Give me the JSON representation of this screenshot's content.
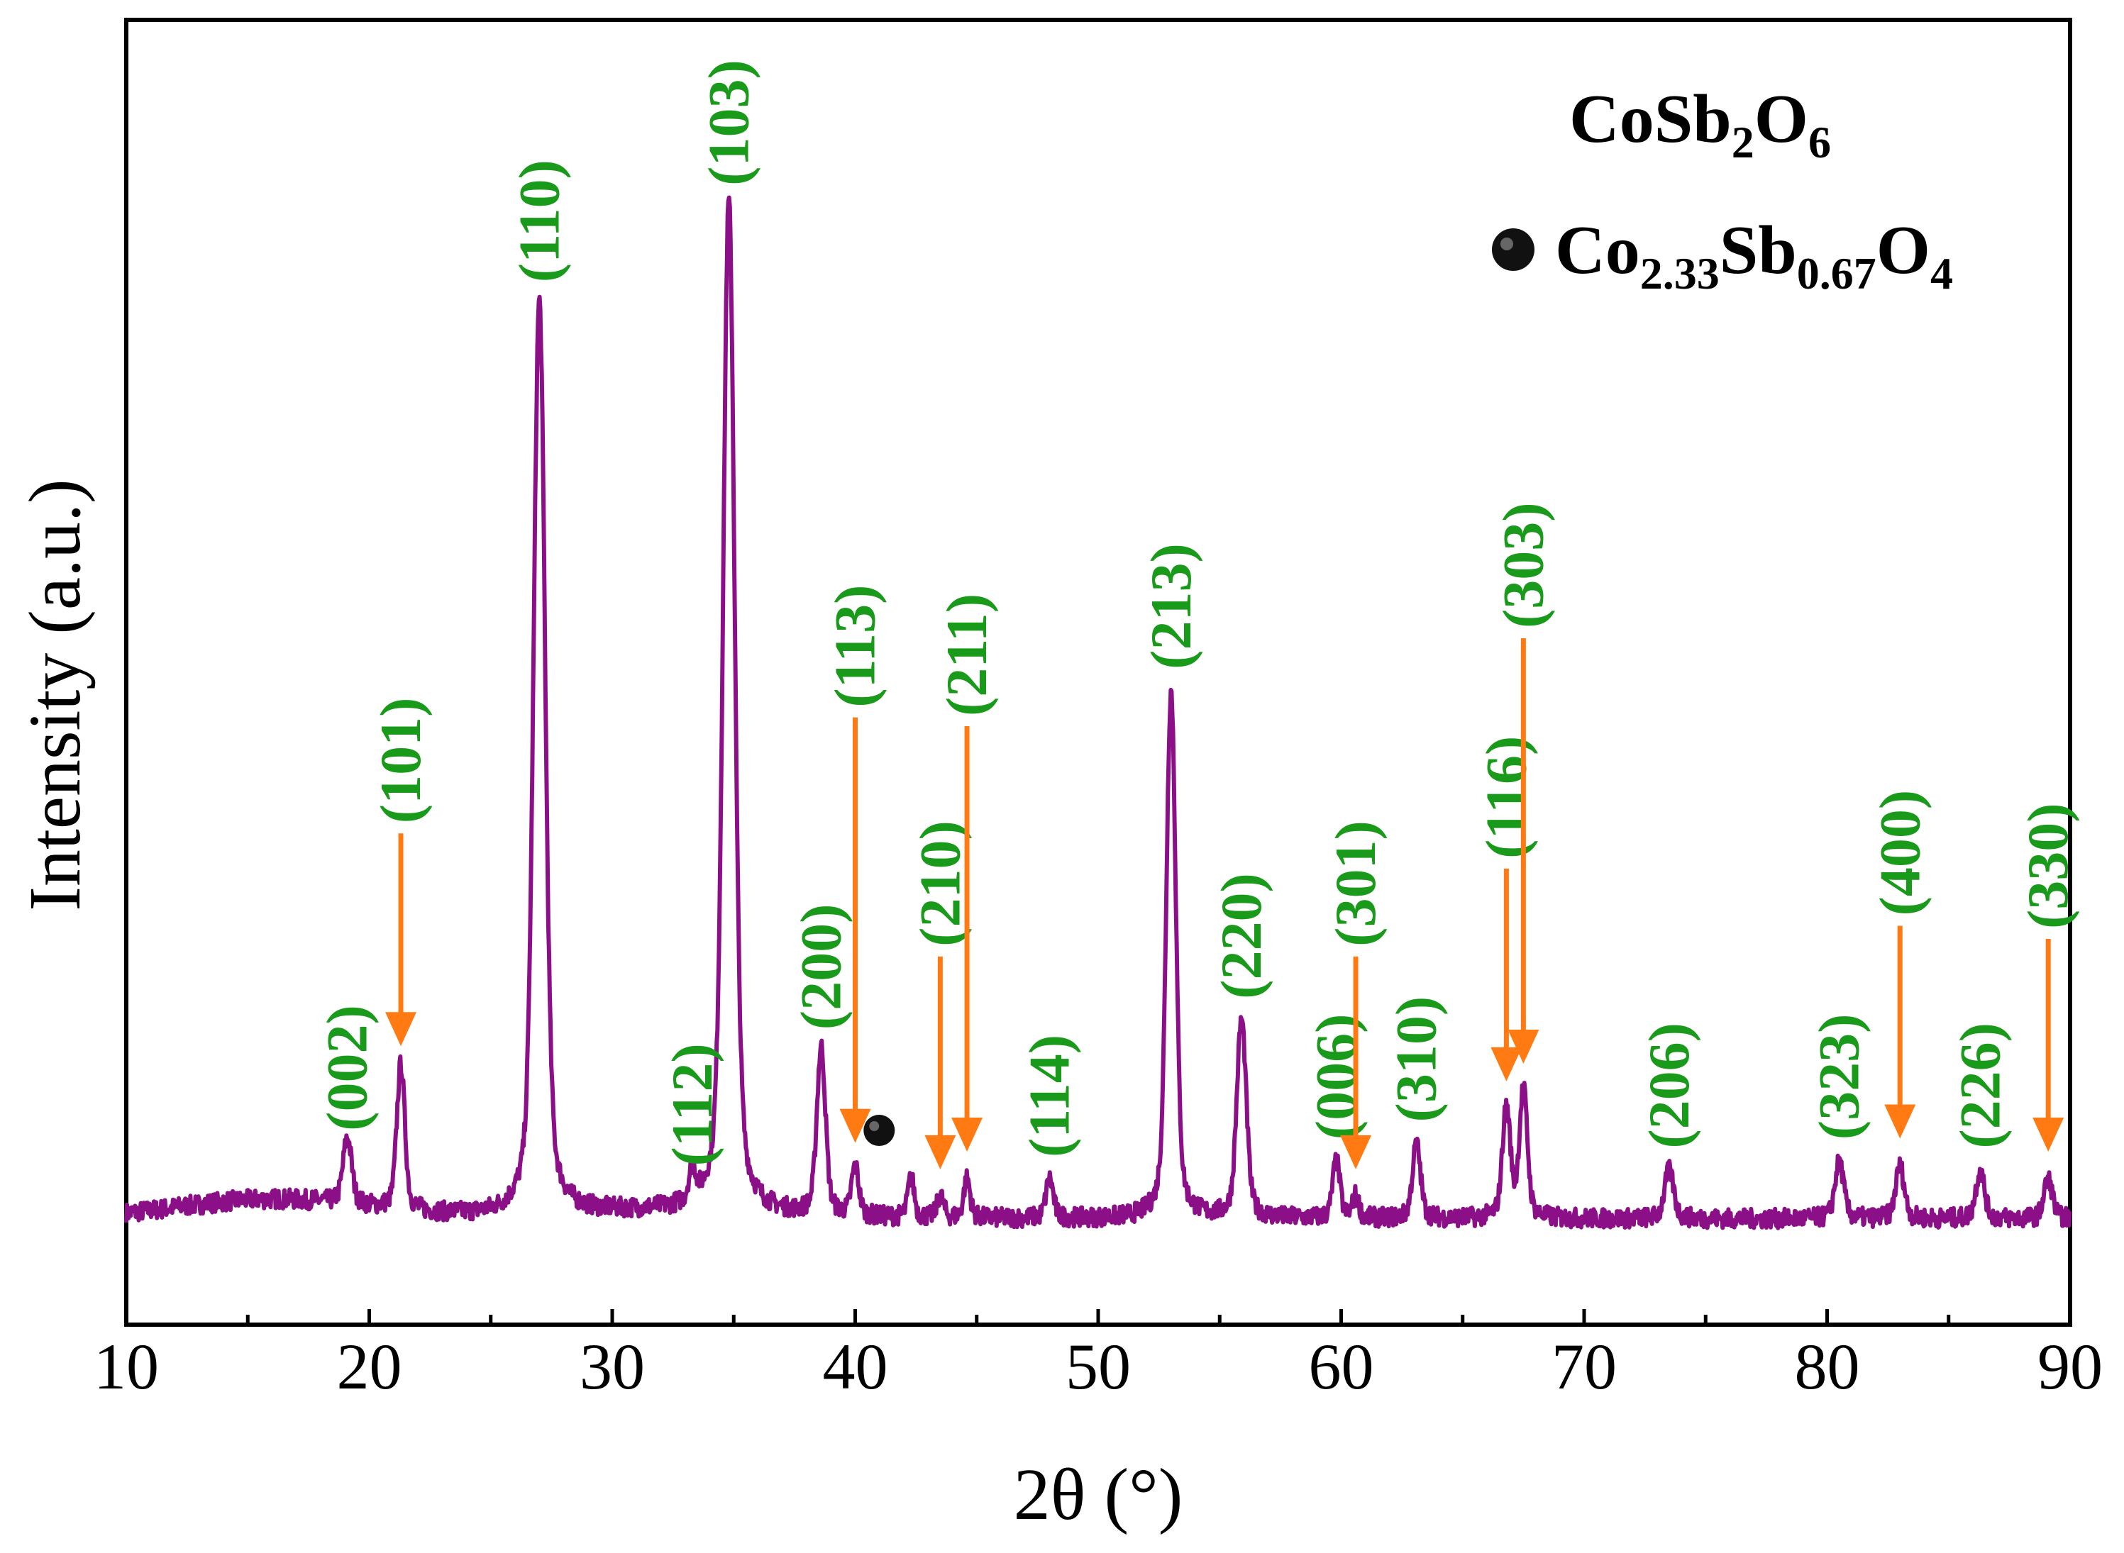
{
  "chart_data": {
    "type": "line",
    "title": "",
    "xlabel": "2θ (°)",
    "ylabel": "Intensity (a.u.)",
    "xlim": [
      10,
      90
    ],
    "ylim": [
      0,
      100
    ],
    "xticks": [
      10,
      20,
      30,
      40,
      50,
      60,
      70,
      80,
      90
    ],
    "xtick_labels": [
      "10",
      "20",
      "30",
      "40",
      "50",
      "60",
      "70",
      "80",
      "90"
    ],
    "grid": false,
    "line_color": "#8b0f86",
    "baseline": 2.5,
    "peaks": [
      {
        "x": 19.1,
        "h": 7.5,
        "w": 0.3,
        "hkl": "(002)",
        "arrow": false
      },
      {
        "x": 21.3,
        "h": 16.5,
        "w": 0.28,
        "hkl": "(101)",
        "arrow": true
      },
      {
        "x": 27.0,
        "h": 104.0,
        "w": 0.4,
        "hkl": "(110)",
        "arrow": false
      },
      {
        "x": 33.3,
        "h": 3.5,
        "w": 0.25,
        "hkl": "(112)",
        "arrow": false
      },
      {
        "x": 34.8,
        "h": 115.0,
        "w": 0.4,
        "hkl": "(103)",
        "arrow": false
      },
      {
        "x": 38.6,
        "h": 19.0,
        "w": 0.3,
        "hkl": "(200)",
        "arrow": false
      },
      {
        "x": 40.0,
        "h": 5.5,
        "w": 0.25,
        "hkl": "(113)",
        "arrow": true
      },
      {
        "x": 42.3,
        "h": 4.5,
        "w": 0.22,
        "hkl": "",
        "arrow": false,
        "marker": "impurity"
      },
      {
        "x": 43.5,
        "h": 2.5,
        "w": 0.22,
        "hkl": "(210)",
        "arrow": true
      },
      {
        "x": 44.6,
        "h": 4.5,
        "w": 0.22,
        "hkl": "(211)",
        "arrow": true
      },
      {
        "x": 48.0,
        "h": 4.5,
        "w": 0.25,
        "hkl": "(114)",
        "arrow": false
      },
      {
        "x": 53.0,
        "h": 60.0,
        "w": 0.33,
        "hkl": "(213)",
        "arrow": false
      },
      {
        "x": 55.9,
        "h": 22.5,
        "w": 0.33,
        "hkl": "(220)",
        "arrow": false
      },
      {
        "x": 59.8,
        "h": 6.5,
        "w": 0.25,
        "hkl": "(006)",
        "arrow": false
      },
      {
        "x": 60.6,
        "h": 2.5,
        "w": 0.22,
        "hkl": "(301)",
        "arrow": true
      },
      {
        "x": 63.1,
        "h": 8.5,
        "w": 0.28,
        "hkl": "(310)",
        "arrow": false
      },
      {
        "x": 66.8,
        "h": 12.5,
        "w": 0.28,
        "hkl": "(116)",
        "arrow": true
      },
      {
        "x": 67.5,
        "h": 14.5,
        "w": 0.28,
        "hkl": "(303)",
        "arrow": true
      },
      {
        "x": 73.5,
        "h": 5.5,
        "w": 0.32,
        "hkl": "(206)",
        "arrow": false
      },
      {
        "x": 80.5,
        "h": 6.5,
        "w": 0.3,
        "hkl": "(323)",
        "arrow": false
      },
      {
        "x": 83.0,
        "h": 6.0,
        "w": 0.3,
        "hkl": "(400)",
        "arrow": true
      },
      {
        "x": 86.3,
        "h": 5.5,
        "w": 0.3,
        "hkl": "(226)",
        "arrow": false
      },
      {
        "x": 89.1,
        "h": 4.5,
        "w": 0.3,
        "hkl": "(330)",
        "arrow": true
      }
    ],
    "label_color": "#1a9a1a",
    "arrow_color": "#ff7a12",
    "legend": [
      {
        "symbol": "none",
        "label_main": "CoSb",
        "sub1": "2",
        "mid": "O",
        "sub2": "6"
      },
      {
        "symbol": "filled-circle",
        "el1": "Co",
        "sub1": "2.33",
        "el2": "Sb",
        "sub2": "0.67",
        "el3": "O",
        "sub3": "4"
      }
    ],
    "legend_position": "top-right"
  }
}
